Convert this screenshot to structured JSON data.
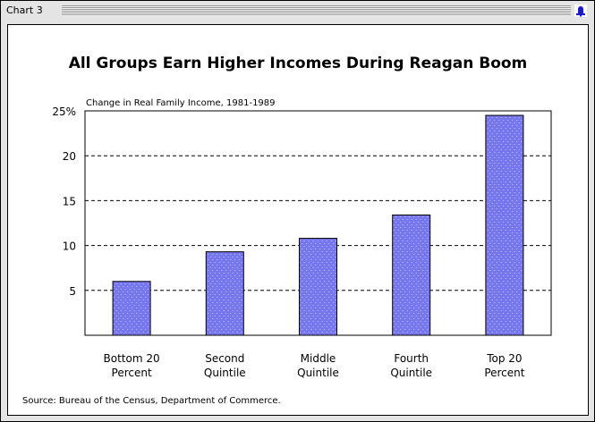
{
  "window": {
    "title": "Chart 3",
    "icon": "bell-icon"
  },
  "chart_data": {
    "type": "bar",
    "title": "All Groups Earn Higher Incomes During Reagan Boom",
    "subtitle": "Change in Real Family Income, 1981-1989",
    "categories": [
      [
        "Bottom 20",
        "Percent"
      ],
      [
        "Second",
        "Quintile"
      ],
      [
        "Middle",
        "Quintile"
      ],
      [
        "Fourth",
        "Quintile"
      ],
      [
        "Top 20",
        "Percent"
      ]
    ],
    "values": [
      6.0,
      9.3,
      10.8,
      13.4,
      24.5
    ],
    "ylim": [
      0,
      25
    ],
    "yticks": [
      {
        "value": 5,
        "label": "5"
      },
      {
        "value": 10,
        "label": "10"
      },
      {
        "value": 15,
        "label": "15"
      },
      {
        "value": 20,
        "label": "20"
      },
      {
        "value": 25,
        "label": "25%"
      }
    ],
    "grid": "dashed horizontal",
    "bar_color": "#7777ee",
    "source": "Source:  Bureau of the Census, Department of Commerce."
  }
}
